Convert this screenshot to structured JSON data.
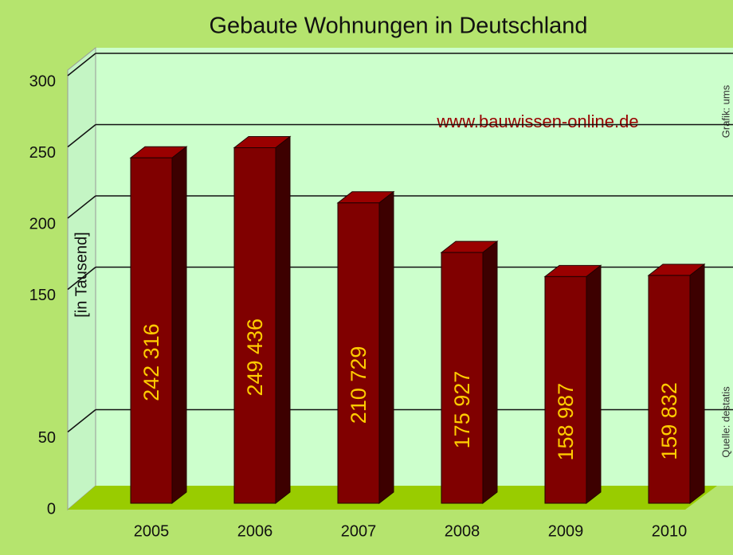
{
  "chart_data": {
    "type": "bar",
    "title": "Gebaute Wohnungen in Deutschland",
    "y_label": "[in Tausend]",
    "annotations": [
      "www.bauwissen-online.de",
      "Grafik: ums",
      "Quelle: destatis"
    ],
    "categories": [
      "2005",
      "2006",
      "2007",
      "2008",
      "2009",
      "2010"
    ],
    "values": [
      242.316,
      249.436,
      210.729,
      175.927,
      158.987,
      159.832
    ],
    "value_labels": [
      "242 316",
      "249 436",
      "210 729",
      "175 927",
      "158 987",
      "159 832"
    ],
    "color": "#800000",
    "ylim": [
      0,
      300
    ],
    "yticks": [
      0,
      50,
      150,
      200,
      250,
      300
    ],
    "grid": true
  }
}
